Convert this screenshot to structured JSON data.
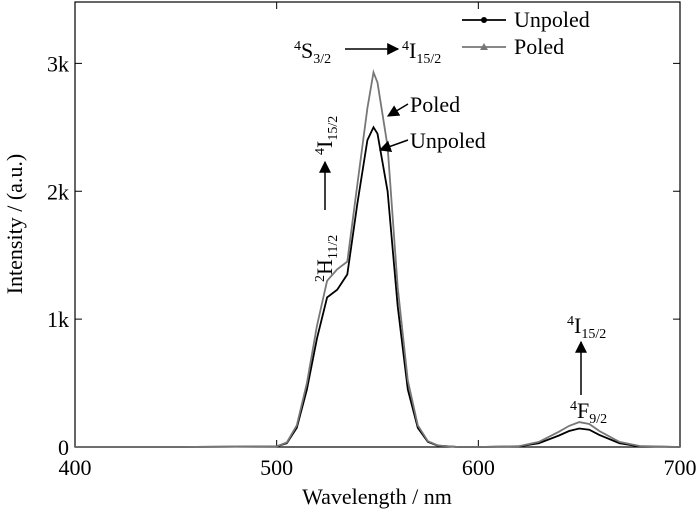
{
  "chart_data": {
    "type": "line",
    "x_label": "Wavelength / nm",
    "y_label": "Intensity / (a.u.)",
    "x": [
      400,
      450,
      500,
      505,
      510,
      515,
      520,
      525,
      530,
      535,
      540,
      545,
      548,
      550,
      555,
      560,
      565,
      570,
      575,
      580,
      590,
      600,
      620,
      630,
      640,
      645,
      650,
      655,
      660,
      670,
      680,
      700
    ],
    "series": [
      {
        "name": "Unpoled",
        "color": "#000000",
        "values": [
          0,
          0,
          5,
          30,
          150,
          450,
          850,
          1170,
          1230,
          1350,
          1900,
          2400,
          2500,
          2450,
          2000,
          1100,
          450,
          150,
          40,
          10,
          0,
          0,
          5,
          30,
          90,
          125,
          145,
          135,
          95,
          30,
          5,
          0
        ]
      },
      {
        "name": "Poled",
        "color": "#777777",
        "values": [
          0,
          0,
          5,
          35,
          170,
          500,
          950,
          1300,
          1390,
          1450,
          2050,
          2650,
          2930,
          2850,
          2350,
          1250,
          520,
          170,
          45,
          12,
          0,
          0,
          6,
          40,
          120,
          165,
          195,
          180,
          125,
          40,
          8,
          0
        ]
      }
    ],
    "xlim": [
      400,
      700
    ],
    "ylim": [
      0,
      3480
    ],
    "xticks": [
      400,
      500,
      600,
      700
    ],
    "yticks": [
      0,
      {
        "value": 1000,
        "label": "1k"
      },
      {
        "value": 2000,
        "label": "2k"
      },
      {
        "value": 3000,
        "label": "3k"
      }
    ],
    "legend": "upper right",
    "transitions": [
      {
        "from": {
          "sup": "4",
          "base": "S",
          "sub": "3/2"
        },
        "to": {
          "sup": "4",
          "base": "I",
          "sub": "15/2"
        }
      },
      {
        "from": {
          "sup": "2",
          "base": "H",
          "sub": "11/2"
        },
        "to": {
          "sup": "4",
          "base": "I",
          "sub": "15/2"
        }
      },
      {
        "from": {
          "sup": "4",
          "base": "F",
          "sub": "9/2"
        },
        "to": {
          "sup": "4",
          "base": "I",
          "sub": "15/2"
        }
      }
    ]
  }
}
